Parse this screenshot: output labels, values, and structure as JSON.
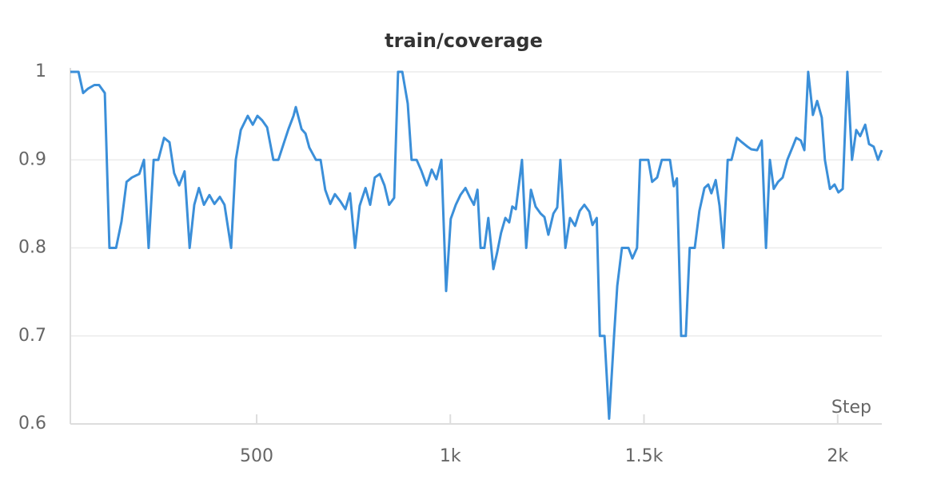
{
  "chart_data": {
    "type": "line",
    "title": "train/coverage",
    "x_label": "Step",
    "series": [
      {
        "name": "train/coverage",
        "color": "#3b8fd9",
        "x": [
          19,
          40,
          52,
          65,
          81,
          93,
          108,
          120,
          137,
          151,
          164,
          178,
          197,
          209,
          221,
          234,
          246,
          261,
          275,
          287,
          300,
          314,
          327,
          339,
          351,
          364,
          378,
          391,
          405,
          417,
          434,
          446,
          459,
          477,
          490,
          502,
          514,
          527,
          543,
          556,
          570,
          582,
          595,
          601,
          616,
          626,
          636,
          653,
          665,
          677,
          690,
          702,
          716,
          729,
          741,
          754,
          766,
          781,
          793,
          805,
          818,
          830,
          842,
          855,
          865,
          876,
          890,
          900,
          913,
          925,
          939,
          952,
          964,
          977,
          989,
          1001,
          1014,
          1026,
          1039,
          1051,
          1061,
          1070,
          1078,
          1088,
          1098,
          1111,
          1121,
          1131,
          1142,
          1152,
          1160,
          1169,
          1185,
          1196,
          1208,
          1220,
          1233,
          1243,
          1253,
          1266,
          1276,
          1284,
          1297,
          1309,
          1322,
          1334,
          1346,
          1359,
          1367,
          1378,
          1386,
          1398,
          1410,
          1423,
          1431,
          1443,
          1460,
          1470,
          1482,
          1490,
          1511,
          1521,
          1534,
          1546,
          1567,
          1577,
          1585,
          1596,
          1608,
          1618,
          1631,
          1643,
          1656,
          1666,
          1674,
          1685,
          1695,
          1705,
          1716,
          1726,
          1740,
          1753,
          1767,
          1777,
          1792,
          1804,
          1815,
          1825,
          1835,
          1846,
          1858,
          1870,
          1883,
          1893,
          1905,
          1914,
          1924,
          1936,
          1947,
          1959,
          1967,
          1980,
          1992,
          2002,
          2013,
          2025,
          2037,
          2048,
          2058,
          2071,
          2081,
          2093,
          2104,
          2114
        ],
        "values": [
          1.0,
          1.0,
          0.976,
          0.981,
          0.985,
          0.985,
          0.976,
          0.8,
          0.8,
          0.83,
          0.875,
          0.88,
          0.884,
          0.9,
          0.8,
          0.9,
          0.9,
          0.925,
          0.92,
          0.885,
          0.871,
          0.887,
          0.8,
          0.849,
          0.868,
          0.849,
          0.86,
          0.85,
          0.858,
          0.849,
          0.8,
          0.9,
          0.934,
          0.95,
          0.94,
          0.95,
          0.945,
          0.937,
          0.9,
          0.9,
          0.919,
          0.935,
          0.95,
          0.96,
          0.935,
          0.93,
          0.914,
          0.9,
          0.9,
          0.866,
          0.85,
          0.861,
          0.853,
          0.844,
          0.862,
          0.8,
          0.848,
          0.868,
          0.849,
          0.88,
          0.884,
          0.871,
          0.849,
          0.857,
          1.0,
          1.0,
          0.964,
          0.9,
          0.9,
          0.888,
          0.871,
          0.889,
          0.878,
          0.9,
          0.751,
          0.833,
          0.849,
          0.86,
          0.868,
          0.857,
          0.849,
          0.866,
          0.8,
          0.8,
          0.834,
          0.776,
          0.795,
          0.817,
          0.834,
          0.829,
          0.847,
          0.844,
          0.9,
          0.8,
          0.866,
          0.847,
          0.839,
          0.835,
          0.815,
          0.839,
          0.846,
          0.9,
          0.8,
          0.834,
          0.825,
          0.842,
          0.849,
          0.841,
          0.826,
          0.834,
          0.7,
          0.7,
          0.606,
          0.702,
          0.757,
          0.8,
          0.8,
          0.788,
          0.8,
          0.9,
          0.9,
          0.875,
          0.88,
          0.9,
          0.9,
          0.87,
          0.879,
          0.7,
          0.7,
          0.8,
          0.8,
          0.842,
          0.868,
          0.872,
          0.862,
          0.877,
          0.848,
          0.8,
          0.9,
          0.9,
          0.925,
          0.92,
          0.915,
          0.912,
          0.911,
          0.922,
          0.8,
          0.9,
          0.867,
          0.875,
          0.88,
          0.9,
          0.914,
          0.925,
          0.922,
          0.911,
          1.0,
          0.951,
          0.967,
          0.948,
          0.9,
          0.867,
          0.872,
          0.863,
          0.867,
          1.0,
          0.9,
          0.934,
          0.927,
          0.94,
          0.918,
          0.915,
          0.9,
          0.911
        ]
      }
    ],
    "xlim": [
      19,
      2114
    ],
    "ylim": [
      0.6,
      1.0
    ],
    "xticks": [
      500,
      {
        "value": 1000,
        "label": "1k"
      },
      {
        "value": 1500,
        "label": "1.5k"
      },
      {
        "value": 2000,
        "label": "2k"
      }
    ],
    "yticks": [
      0.6,
      0.7,
      0.8,
      0.9,
      1
    ],
    "grid": true
  }
}
